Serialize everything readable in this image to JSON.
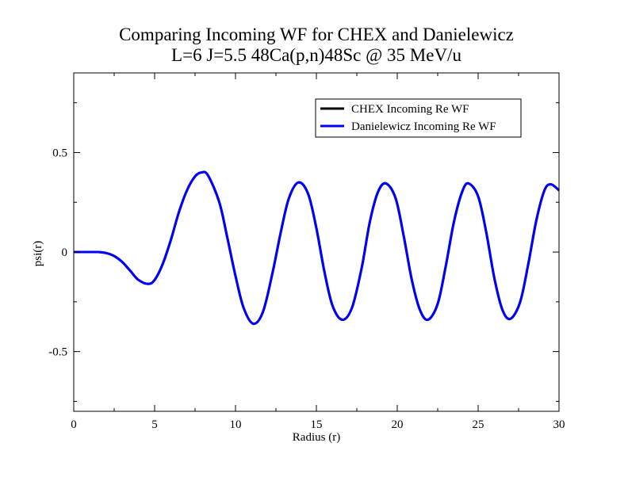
{
  "chart_data": {
    "type": "line",
    "title": "Comparing Incoming WF for CHEX and Danielewicz",
    "subtitle": "L=6 J=5.5 48Ca(p,n)48Sc @ 35 MeV/u",
    "xlabel": "Radius (r)",
    "ylabel": "psi(r)",
    "xlim": [
      0,
      30
    ],
    "ylim": [
      -0.8,
      0.9
    ],
    "x_ticks": [
      0,
      5,
      10,
      15,
      20,
      25,
      30
    ],
    "x_tick_labels": [
      "0",
      "5",
      "10",
      "15",
      "20",
      "25",
      "30"
    ],
    "y_ticks": [
      -0.5,
      0,
      0.5
    ],
    "y_tick_labels": [
      "-0.5",
      "0",
      "0.5"
    ],
    "grid": false,
    "legend_position": "top-right",
    "series": [
      {
        "name": "CHEX Incoming Re WF",
        "color": "#000000",
        "points": [
          [
            0,
            0
          ],
          [
            1,
            0
          ],
          [
            1.5,
            0
          ],
          [
            2,
            -0.005
          ],
          [
            2.5,
            -0.02
          ],
          [
            3,
            -0.05
          ],
          [
            3.5,
            -0.095
          ],
          [
            4,
            -0.14
          ],
          [
            4.6,
            -0.16
          ],
          [
            5,
            -0.14
          ],
          [
            5.5,
            -0.06
          ],
          [
            6,
            0.06
          ],
          [
            6.5,
            0.2
          ],
          [
            7,
            0.31
          ],
          [
            7.5,
            0.38
          ],
          [
            7.9,
            0.4
          ],
          [
            8.3,
            0.385
          ],
          [
            9,
            0.25
          ],
          [
            9.5,
            0.07
          ],
          [
            10,
            -0.12
          ],
          [
            10.5,
            -0.28
          ],
          [
            11.1,
            -0.36
          ],
          [
            11.7,
            -0.3
          ],
          [
            12.3,
            -0.1
          ],
          [
            12.8,
            0.1
          ],
          [
            13.3,
            0.27
          ],
          [
            13.9,
            0.35
          ],
          [
            14.5,
            0.29
          ],
          [
            15,
            0.12
          ],
          [
            15.5,
            -0.1
          ],
          [
            16,
            -0.27
          ],
          [
            16.6,
            -0.34
          ],
          [
            17.2,
            -0.28
          ],
          [
            17.8,
            -0.08
          ],
          [
            18.3,
            0.15
          ],
          [
            18.8,
            0.3
          ],
          [
            19.3,
            0.345
          ],
          [
            19.9,
            0.27
          ],
          [
            20.4,
            0.08
          ],
          [
            20.9,
            -0.14
          ],
          [
            21.4,
            -0.29
          ],
          [
            21.9,
            -0.34
          ],
          [
            22.5,
            -0.26
          ],
          [
            23,
            -0.07
          ],
          [
            23.5,
            0.15
          ],
          [
            24,
            0.3
          ],
          [
            24.4,
            0.345
          ],
          [
            25,
            0.28
          ],
          [
            25.5,
            0.1
          ],
          [
            26,
            -0.13
          ],
          [
            26.5,
            -0.29
          ],
          [
            27,
            -0.335
          ],
          [
            27.6,
            -0.25
          ],
          [
            28.1,
            -0.06
          ],
          [
            28.6,
            0.16
          ],
          [
            29.1,
            0.31
          ],
          [
            29.5,
            0.34
          ],
          [
            30,
            0.31
          ]
        ]
      },
      {
        "name": "Danielewicz Incoming Re WF",
        "color": "#0000ff",
        "points": [
          [
            0,
            0
          ],
          [
            1,
            0
          ],
          [
            1.5,
            0
          ],
          [
            2,
            -0.005
          ],
          [
            2.5,
            -0.02
          ],
          [
            3,
            -0.05
          ],
          [
            3.5,
            -0.095
          ],
          [
            4,
            -0.14
          ],
          [
            4.6,
            -0.16
          ],
          [
            5,
            -0.14
          ],
          [
            5.5,
            -0.06
          ],
          [
            6,
            0.06
          ],
          [
            6.5,
            0.2
          ],
          [
            7,
            0.31
          ],
          [
            7.5,
            0.38
          ],
          [
            7.9,
            0.4
          ],
          [
            8.3,
            0.385
          ],
          [
            9,
            0.25
          ],
          [
            9.5,
            0.07
          ],
          [
            10,
            -0.12
          ],
          [
            10.5,
            -0.28
          ],
          [
            11.1,
            -0.36
          ],
          [
            11.7,
            -0.3
          ],
          [
            12.3,
            -0.1
          ],
          [
            12.8,
            0.1
          ],
          [
            13.3,
            0.27
          ],
          [
            13.9,
            0.35
          ],
          [
            14.5,
            0.29
          ],
          [
            15,
            0.12
          ],
          [
            15.5,
            -0.1
          ],
          [
            16,
            -0.27
          ],
          [
            16.6,
            -0.34
          ],
          [
            17.2,
            -0.28
          ],
          [
            17.8,
            -0.08
          ],
          [
            18.3,
            0.15
          ],
          [
            18.8,
            0.3
          ],
          [
            19.3,
            0.345
          ],
          [
            19.9,
            0.27
          ],
          [
            20.4,
            0.08
          ],
          [
            20.9,
            -0.14
          ],
          [
            21.4,
            -0.29
          ],
          [
            21.9,
            -0.34
          ],
          [
            22.5,
            -0.26
          ],
          [
            23,
            -0.07
          ],
          [
            23.5,
            0.15
          ],
          [
            24,
            0.3
          ],
          [
            24.4,
            0.345
          ],
          [
            25,
            0.28
          ],
          [
            25.5,
            0.1
          ],
          [
            26,
            -0.13
          ],
          [
            26.5,
            -0.29
          ],
          [
            27,
            -0.335
          ],
          [
            27.6,
            -0.25
          ],
          [
            28.1,
            -0.06
          ],
          [
            28.6,
            0.16
          ],
          [
            29.1,
            0.31
          ],
          [
            29.5,
            0.34
          ],
          [
            30,
            0.31
          ]
        ]
      }
    ]
  }
}
